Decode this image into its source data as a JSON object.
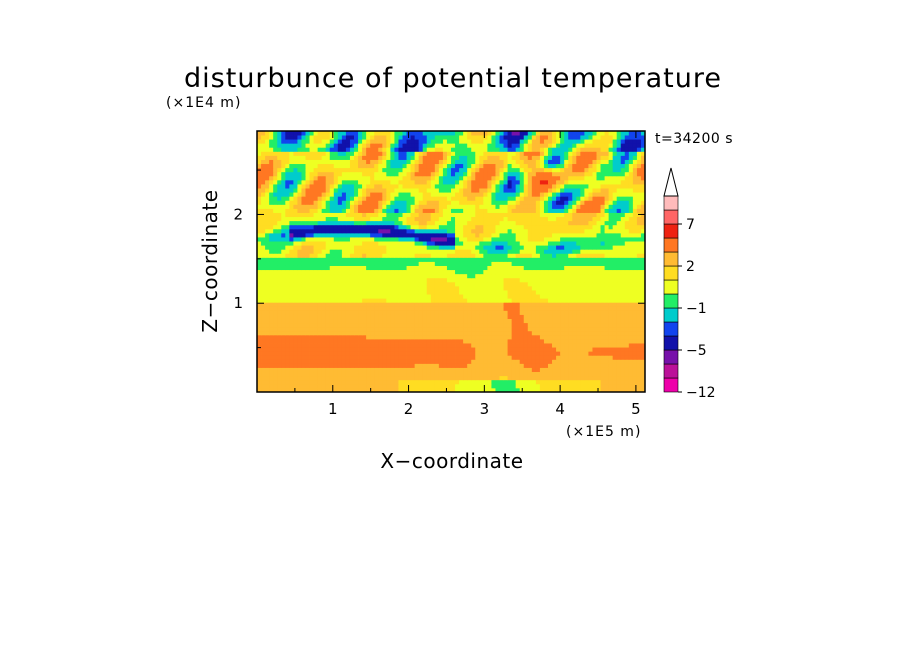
{
  "chart_data": {
    "type": "heatmap",
    "title": "disturbunce of potential temperature",
    "time_label": "t=34200 s",
    "xlabel": "X−coordinate",
    "ylabel": "Z−coordinate",
    "x_unit": "(×1E5 m)",
    "y_unit": "(×1E4 m)",
    "xlim": [
      0,
      5.12
    ],
    "ylim": [
      0,
      2.94
    ],
    "x_ticks": [
      1,
      2,
      3,
      4,
      5
    ],
    "x_tick_labels": [
      "1",
      "2",
      "3",
      "4",
      "5"
    ],
    "y_ticks": [
      1,
      2
    ],
    "y_tick_labels": [
      "1",
      "2"
    ],
    "colorbar": {
      "levels": [
        -12,
        -10,
        -7,
        -5,
        -3,
        -2,
        -1,
        0,
        1,
        2,
        3,
        5,
        7,
        9,
        12
      ],
      "tick_values": [
        -12,
        -5,
        -1,
        2,
        7
      ],
      "tick_labels": [
        "−12",
        "−5",
        "−1",
        "2",
        "7"
      ],
      "colors": [
        "#ee00aa",
        "#bb1199",
        "#7711aa",
        "#1111aa",
        "#1144ee",
        "#00cccc",
        "#22ee66",
        "#eeff22",
        "#ffdd22",
        "#ffbb33",
        "#ff7722",
        "#ee2211",
        "#ff6666",
        "#ffbbbb"
      ],
      "extend": "max"
    }
  }
}
